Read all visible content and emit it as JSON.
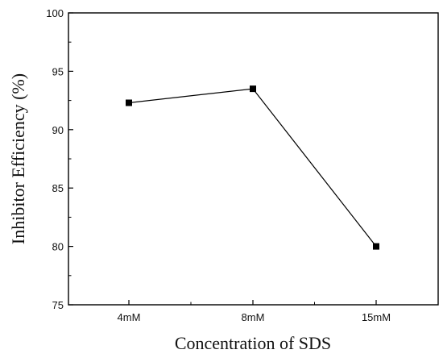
{
  "chart_data": {
    "type": "line",
    "title": "",
    "xlabel": "Concentration of SDS",
    "ylabel": "Inhibitor Efficiency (%)",
    "categories": [
      "4mM",
      "8mM",
      "15mM"
    ],
    "series": [
      {
        "values": [
          92.3,
          93.5,
          80.0
        ]
      }
    ],
    "ylim": [
      75,
      100
    ],
    "yticks": [
      "75",
      "80",
      "85",
      "90",
      "95",
      "100"
    ],
    "grid": false,
    "legend": "none",
    "line_color": "#000000",
    "marker": "square"
  }
}
